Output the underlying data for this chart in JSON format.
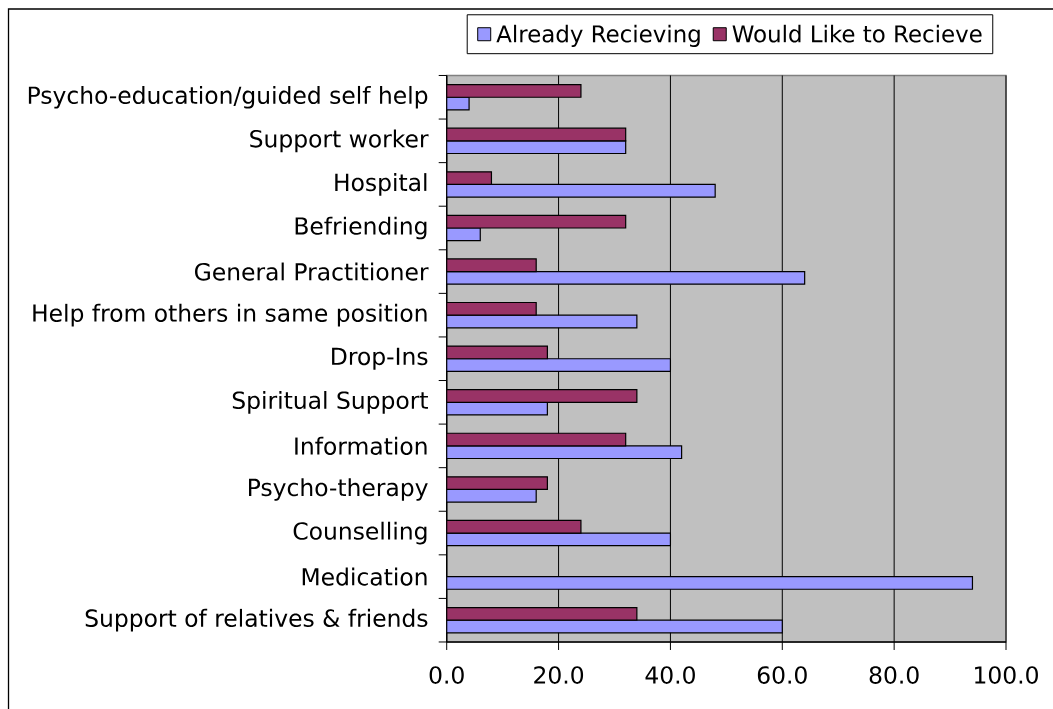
{
  "chart_data": {
    "type": "bar",
    "orientation": "horizontal",
    "categories": [
      "Psycho-education/guided self help",
      "Support worker",
      "Hospital",
      "Befriending",
      "General Practitioner",
      "Help from others in same position",
      "Drop-Ins",
      "Spiritual Support",
      "Information",
      "Psycho-therapy",
      "Counselling",
      "Medication",
      "Support of relatives & friends"
    ],
    "series": [
      {
        "name": "Already Recieving",
        "color": "#9999ff",
        "values": [
          4,
          32,
          48,
          6,
          64,
          34,
          40,
          18,
          42,
          16,
          40,
          94,
          60
        ]
      },
      {
        "name": "Would Like to Recieve",
        "color": "#993366",
        "values": [
          24,
          32,
          8,
          32,
          16,
          16,
          18,
          34,
          32,
          18,
          24,
          null,
          34
        ]
      }
    ],
    "xlim": [
      0,
      100
    ],
    "xticks": [
      {
        "value": 0,
        "label": "0.0"
      },
      {
        "value": 20,
        "label": "20.0"
      },
      {
        "value": 40,
        "label": "40.0"
      },
      {
        "value": 60,
        "label": "60.0"
      },
      {
        "value": 80,
        "label": "80.0"
      },
      {
        "value": 100,
        "label": "100.0"
      }
    ],
    "grid": "x",
    "legend": "top"
  }
}
